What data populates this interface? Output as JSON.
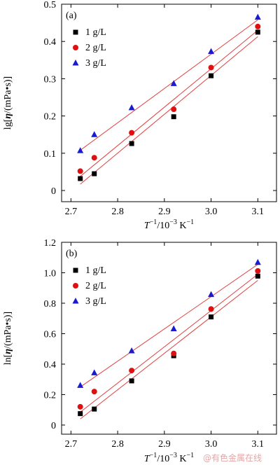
{
  "colors": {
    "fit_line": "#e14040",
    "series": [
      "#000000",
      "#e01010",
      "#1a1ad0"
    ]
  },
  "watermark": "@有色金属在线",
  "chart_data": [
    {
      "type": "scatter",
      "panel_label": "(a)",
      "ylabel_parts": [
        "lg[",
        "η",
        "/(mPa•s)]"
      ],
      "xlabel_parts": [
        "T",
        "−1",
        "/10",
        "−3",
        " K",
        "−1"
      ],
      "xlim": [
        2.68,
        3.14
      ],
      "ylim": [
        -0.03,
        0.5
      ],
      "xticks": [
        2.7,
        2.8,
        2.9,
        3.0,
        3.1
      ],
      "xtick_labels": [
        "2.7",
        "2.8",
        "2.9",
        "3.0",
        "3.1"
      ],
      "yticks": [
        0,
        0.1,
        0.2,
        0.3,
        0.4,
        0.5
      ],
      "ytick_labels": [
        "0",
        "0.1",
        "0.2",
        "0.3",
        "0.4",
        "0.5"
      ],
      "legend_position": "upper-left",
      "series": [
        {
          "name": "1 g/L",
          "marker": "square",
          "x": [
            2.72,
            2.75,
            2.83,
            2.92,
            3.0,
            3.1
          ],
          "y": [
            0.032,
            0.045,
            0.126,
            0.198,
            0.308,
            0.425
          ],
          "fit": [
            [
              2.72,
              0.017
            ],
            [
              3.1,
              0.413
            ]
          ]
        },
        {
          "name": "2 g/L",
          "marker": "circle",
          "x": [
            2.72,
            2.75,
            2.83,
            2.92,
            3.0,
            3.1
          ],
          "y": [
            0.052,
            0.088,
            0.155,
            0.218,
            0.33,
            0.44
          ],
          "fit": [
            [
              2.72,
              0.038
            ],
            [
              3.1,
              0.43
            ]
          ]
        },
        {
          "name": "3 g/L",
          "marker": "triangle",
          "x": [
            2.72,
            2.75,
            2.83,
            2.92,
            3.0,
            3.1
          ],
          "y": [
            0.107,
            0.15,
            0.222,
            0.287,
            0.373,
            0.465
          ],
          "fit": [
            [
              2.72,
              0.108
            ],
            [
              3.1,
              0.458
            ]
          ]
        }
      ]
    },
    {
      "type": "scatter",
      "panel_label": "(b)",
      "ylabel_parts": [
        "ln[",
        "η",
        "/(mPa•s)]"
      ],
      "xlabel_parts": [
        "T",
        "−1",
        "/10",
        "−3",
        " K",
        "−1"
      ],
      "xlim": [
        2.68,
        3.14
      ],
      "ylim": [
        -0.06,
        1.2
      ],
      "xticks": [
        2.7,
        2.8,
        2.9,
        3.0,
        3.1
      ],
      "xtick_labels": [
        "2.7",
        "2.8",
        "2.9",
        "3.0",
        "3.1"
      ],
      "yticks": [
        0,
        0.2,
        0.4,
        0.6,
        0.8,
        1.0,
        1.2
      ],
      "ytick_labels": [
        "0",
        "0.2",
        "0.4",
        "0.6",
        "0.8",
        "1.0",
        "1.2"
      ],
      "legend_position": "upper-left",
      "series": [
        {
          "name": "1 g/L",
          "marker": "square",
          "x": [
            2.72,
            2.75,
            2.83,
            2.92,
            3.0,
            3.1
          ],
          "y": [
            0.075,
            0.105,
            0.29,
            0.455,
            0.71,
            0.978
          ],
          "fit": [
            [
              2.72,
              0.04
            ],
            [
              3.1,
              0.95
            ]
          ]
        },
        {
          "name": "2 g/L",
          "marker": "circle",
          "x": [
            2.72,
            2.75,
            2.83,
            2.92,
            3.0,
            3.1
          ],
          "y": [
            0.12,
            0.22,
            0.358,
            0.47,
            0.762,
            1.012
          ],
          "fit": [
            [
              2.72,
              0.085
            ],
            [
              3.1,
              0.99
            ]
          ]
        },
        {
          "name": "3 g/L",
          "marker": "triangle",
          "x": [
            2.72,
            2.75,
            2.83,
            2.92,
            3.0,
            3.1
          ],
          "y": [
            0.26,
            0.343,
            0.487,
            0.632,
            0.857,
            1.068
          ],
          "fit": [
            [
              2.72,
              0.25
            ],
            [
              3.1,
              1.055
            ]
          ]
        }
      ]
    }
  ]
}
